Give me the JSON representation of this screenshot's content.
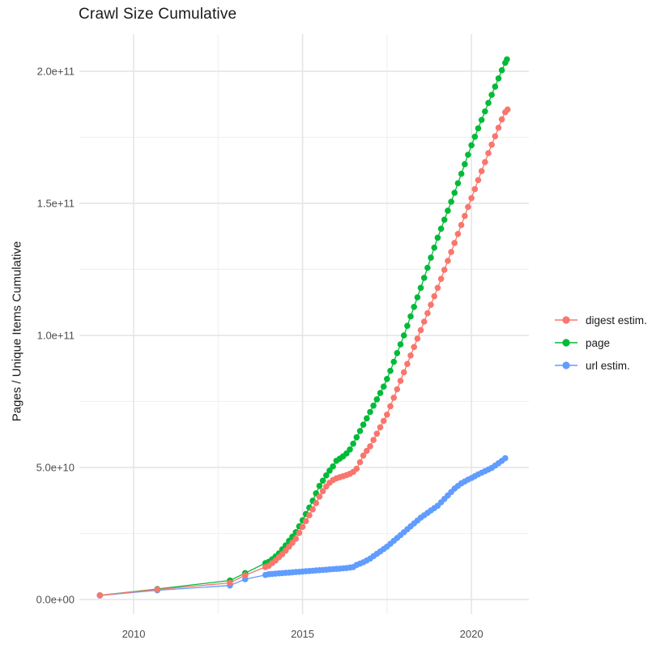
{
  "title": "Crawl Size Cumulative",
  "axes": {
    "y_label": "Pages / Unique Items Cumulative",
    "y_ticks": [
      "0.0e+00",
      "5.0e+10",
      "1.0e+11",
      "1.5e+11",
      "2.0e+11"
    ],
    "y_tick_values_billions": [
      0,
      50,
      100,
      150,
      200
    ],
    "y_minor_values_billions": [
      25,
      75,
      125,
      175
    ],
    "x_ticks": [
      "2010",
      "2015",
      "2020"
    ],
    "x_tick_values": [
      2010,
      2015,
      2020
    ],
    "x_minor_values": [
      2012.5,
      2017.5
    ]
  },
  "legend": {
    "items": [
      {
        "label": "digest estim.",
        "color": "#F8766D"
      },
      {
        "label": "page",
        "color": "#00BA38"
      },
      {
        "label": "url estim.",
        "color": "#619CFF"
      }
    ]
  },
  "chart_data": {
    "type": "line",
    "title": "Crawl Size Cumulative",
    "xlabel": "",
    "ylabel": "Pages / Unique Items Cumulative",
    "x_unit": "year",
    "y_values_unit": "billions (value x 1e9 items)",
    "xlim": [
      2008.4,
      2021.7
    ],
    "ylim": [
      0,
      215000000000.0
    ],
    "grid": true,
    "legend_position": "right",
    "marker": "point",
    "draw_order": [
      "page",
      "url estim.",
      "digest estim."
    ],
    "series": [
      {
        "name": "digest estim.",
        "color": "#F8766D",
        "points": [
          [
            2009,
            1.6
          ],
          [
            2010.7,
            3.8
          ],
          [
            2012.85,
            6.3
          ],
          [
            2013.3,
            9.2
          ],
          [
            2013.9,
            12.3
          ],
          [
            2014,
            12.8
          ],
          [
            2014.1,
            13.8
          ],
          [
            2014.2,
            14.8
          ],
          [
            2014.3,
            16
          ],
          [
            2014.4,
            17.2
          ],
          [
            2014.5,
            18.5
          ],
          [
            2014.6,
            20
          ],
          [
            2014.7,
            21.5
          ],
          [
            2014.8,
            23
          ],
          [
            2014.9,
            25.2
          ],
          [
            2015,
            27.5
          ],
          [
            2015.1,
            29.7
          ],
          [
            2015.2,
            31.9
          ],
          [
            2015.3,
            34.1
          ],
          [
            2015.4,
            36.5
          ],
          [
            2015.5,
            39
          ],
          [
            2015.6,
            41
          ],
          [
            2015.7,
            42.8
          ],
          [
            2015.8,
            44.2
          ],
          [
            2015.9,
            45.2
          ],
          [
            2016,
            45.9
          ],
          [
            2016.1,
            46.3
          ],
          [
            2016.2,
            46.7
          ],
          [
            2016.3,
            47.1
          ],
          [
            2016.4,
            47.6
          ],
          [
            2016.5,
            48.3
          ],
          [
            2016.6,
            49.5
          ],
          [
            2016.7,
            52
          ],
          [
            2016.8,
            54.5
          ],
          [
            2016.9,
            56.3
          ],
          [
            2017,
            58
          ],
          [
            2017.1,
            60.4
          ],
          [
            2017.2,
            62.8
          ],
          [
            2017.3,
            65.2
          ],
          [
            2017.4,
            67.6
          ],
          [
            2017.5,
            70
          ],
          [
            2017.6,
            73.2
          ],
          [
            2017.7,
            76.4
          ],
          [
            2017.8,
            79.6
          ],
          [
            2017.9,
            82.8
          ],
          [
            2018,
            86
          ],
          [
            2018.1,
            89.2
          ],
          [
            2018.2,
            92.4
          ],
          [
            2018.3,
            95.6
          ],
          [
            2018.4,
            98.8
          ],
          [
            2018.5,
            102
          ],
          [
            2018.6,
            105.2
          ],
          [
            2018.7,
            108.4
          ],
          [
            2018.8,
            111.6
          ],
          [
            2018.9,
            114.8
          ],
          [
            2019,
            118
          ],
          [
            2019.1,
            121.4
          ],
          [
            2019.2,
            124.8
          ],
          [
            2019.3,
            128.2
          ],
          [
            2019.4,
            131.6
          ],
          [
            2019.5,
            135
          ],
          [
            2019.6,
            138.4
          ],
          [
            2019.7,
            141.8
          ],
          [
            2019.8,
            145.2
          ],
          [
            2019.9,
            148.6
          ],
          [
            2020,
            152
          ],
          [
            2020.1,
            155.4
          ],
          [
            2020.2,
            158.8
          ],
          [
            2020.3,
            162.2
          ],
          [
            2020.4,
            165.6
          ],
          [
            2020.5,
            169
          ],
          [
            2020.6,
            172.2
          ],
          [
            2020.7,
            175.4
          ],
          [
            2020.8,
            178.6
          ],
          [
            2020.9,
            181.8
          ],
          [
            2021,
            184.5
          ],
          [
            2021.07,
            185.5
          ]
        ]
      },
      {
        "name": "page",
        "color": "#00BA38",
        "points": [
          [
            2009,
            1.6
          ],
          [
            2010.7,
            4
          ],
          [
            2012.85,
            7.2
          ],
          [
            2013.3,
            10
          ],
          [
            2013.9,
            13.8
          ],
          [
            2014,
            14.3
          ],
          [
            2014.1,
            15.2
          ],
          [
            2014.2,
            16.3
          ],
          [
            2014.3,
            17.5
          ],
          [
            2014.4,
            19
          ],
          [
            2014.5,
            20.5
          ],
          [
            2014.6,
            22.2
          ],
          [
            2014.7,
            23.8
          ],
          [
            2014.8,
            25.5
          ],
          [
            2014.9,
            27.7
          ],
          [
            2015,
            30
          ],
          [
            2015.1,
            32.4
          ],
          [
            2015.2,
            34.8
          ],
          [
            2015.3,
            37.4
          ],
          [
            2015.4,
            40.2
          ],
          [
            2015.5,
            43
          ],
          [
            2015.6,
            45
          ],
          [
            2015.7,
            47
          ],
          [
            2015.8,
            48.8
          ],
          [
            2015.9,
            50.4
          ],
          [
            2016,
            52.5
          ],
          [
            2016.1,
            53.3
          ],
          [
            2016.2,
            54.2
          ],
          [
            2016.3,
            55.3
          ],
          [
            2016.4,
            56.8
          ],
          [
            2016.5,
            59
          ],
          [
            2016.6,
            61.4
          ],
          [
            2016.7,
            63.8
          ],
          [
            2016.8,
            66.2
          ],
          [
            2016.9,
            68.6
          ],
          [
            2017,
            71
          ],
          [
            2017.1,
            73.4
          ],
          [
            2017.2,
            75.8
          ],
          [
            2017.3,
            78.2
          ],
          [
            2017.4,
            80.6
          ],
          [
            2017.5,
            83.5
          ],
          [
            2017.6,
            86.6
          ],
          [
            2017.7,
            90
          ],
          [
            2017.8,
            93.3
          ],
          [
            2017.9,
            96.6
          ],
          [
            2018,
            100
          ],
          [
            2018.1,
            103.6
          ],
          [
            2018.2,
            107.2
          ],
          [
            2018.3,
            110.8
          ],
          [
            2018.4,
            114.4
          ],
          [
            2018.5,
            118
          ],
          [
            2018.6,
            121.8
          ],
          [
            2018.7,
            125.6
          ],
          [
            2018.8,
            129.4
          ],
          [
            2018.9,
            133.2
          ],
          [
            2019,
            137
          ],
          [
            2019.1,
            140.4
          ],
          [
            2019.2,
            143.8
          ],
          [
            2019.3,
            147.2
          ],
          [
            2019.4,
            150.6
          ],
          [
            2019.5,
            154
          ],
          [
            2019.6,
            157.6
          ],
          [
            2019.7,
            161.2
          ],
          [
            2019.8,
            164.8
          ],
          [
            2019.9,
            168.4
          ],
          [
            2020,
            172
          ],
          [
            2020.1,
            175.2
          ],
          [
            2020.2,
            178.4
          ],
          [
            2020.3,
            181.6
          ],
          [
            2020.4,
            184.8
          ],
          [
            2020.5,
            188
          ],
          [
            2020.6,
            191.1
          ],
          [
            2020.7,
            194.2
          ],
          [
            2020.8,
            197.3
          ],
          [
            2020.9,
            200.4
          ],
          [
            2021,
            203.2
          ],
          [
            2021.05,
            204.5
          ]
        ]
      },
      {
        "name": "url estim.",
        "color": "#619CFF",
        "points": [
          [
            2009,
            1.5
          ],
          [
            2010.7,
            3.5
          ],
          [
            2012.85,
            5.3
          ],
          [
            2013.3,
            7.7
          ],
          [
            2013.9,
            9.3
          ],
          [
            2014,
            9.6
          ],
          [
            2014.1,
            9.7
          ],
          [
            2014.2,
            9.8
          ],
          [
            2014.3,
            9.9
          ],
          [
            2014.4,
            10
          ],
          [
            2014.5,
            10.1
          ],
          [
            2014.6,
            10.2
          ],
          [
            2014.7,
            10.3
          ],
          [
            2014.8,
            10.4
          ],
          [
            2014.9,
            10.5
          ],
          [
            2015,
            10.6
          ],
          [
            2015.1,
            10.7
          ],
          [
            2015.2,
            10.8
          ],
          [
            2015.3,
            10.9
          ],
          [
            2015.4,
            11
          ],
          [
            2015.5,
            11.1
          ],
          [
            2015.6,
            11.2
          ],
          [
            2015.7,
            11.3
          ],
          [
            2015.8,
            11.4
          ],
          [
            2015.9,
            11.5
          ],
          [
            2016,
            11.6
          ],
          [
            2016.1,
            11.7
          ],
          [
            2016.2,
            11.8
          ],
          [
            2016.3,
            11.9
          ],
          [
            2016.4,
            12.1
          ],
          [
            2016.5,
            12.3
          ],
          [
            2016.6,
            13.1
          ],
          [
            2016.7,
            13.6
          ],
          [
            2016.8,
            14.1
          ],
          [
            2016.9,
            14.8
          ],
          [
            2017,
            15.5
          ],
          [
            2017.1,
            16.4
          ],
          [
            2017.2,
            17.3
          ],
          [
            2017.3,
            18.2
          ],
          [
            2017.4,
            19.1
          ],
          [
            2017.5,
            20
          ],
          [
            2017.6,
            21.1
          ],
          [
            2017.7,
            22.2
          ],
          [
            2017.8,
            23.3
          ],
          [
            2017.9,
            24.4
          ],
          [
            2018,
            25.5
          ],
          [
            2018.1,
            26.6
          ],
          [
            2018.2,
            27.7
          ],
          [
            2018.3,
            28.8
          ],
          [
            2018.4,
            29.9
          ],
          [
            2018.5,
            31
          ],
          [
            2018.6,
            31.9
          ],
          [
            2018.7,
            32.8
          ],
          [
            2018.8,
            33.7
          ],
          [
            2018.9,
            34.6
          ],
          [
            2019,
            35.5
          ],
          [
            2019.1,
            36.8
          ],
          [
            2019.2,
            38.1
          ],
          [
            2019.3,
            39.4
          ],
          [
            2019.4,
            40.7
          ],
          [
            2019.5,
            42
          ],
          [
            2019.6,
            43
          ],
          [
            2019.7,
            44
          ],
          [
            2019.8,
            44.7
          ],
          [
            2019.9,
            45.4
          ],
          [
            2020,
            46
          ],
          [
            2020.1,
            46.7
          ],
          [
            2020.2,
            47.4
          ],
          [
            2020.3,
            48
          ],
          [
            2020.4,
            48.6
          ],
          [
            2020.5,
            49.2
          ],
          [
            2020.6,
            49.8
          ],
          [
            2020.7,
            50.7
          ],
          [
            2020.8,
            51.6
          ],
          [
            2020.9,
            52.5
          ],
          [
            2021,
            53.5
          ]
        ]
      }
    ]
  }
}
